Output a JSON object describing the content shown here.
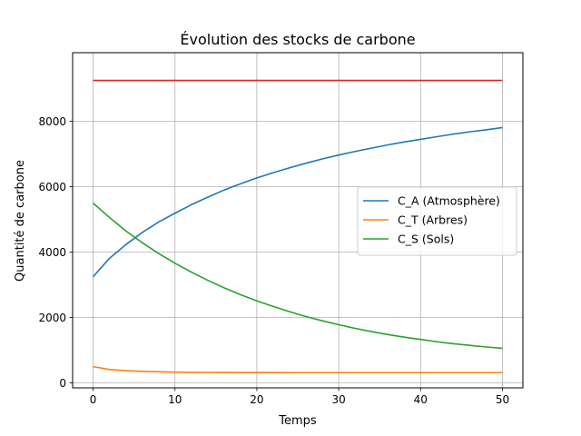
{
  "chart_data": {
    "type": "line",
    "title": "Évolution des stocks de carbone",
    "xlabel": "Temps",
    "ylabel": "Quantité de carbone",
    "xlim": [
      -2.5,
      52.5
    ],
    "ylim": [
      -150,
      10100
    ],
    "xticks": [
      0,
      10,
      20,
      30,
      40,
      50
    ],
    "yticks": [
      0,
      2000,
      4000,
      6000,
      8000
    ],
    "grid": true,
    "legend": "center-right",
    "x": [
      0,
      2,
      4,
      6,
      8,
      10,
      12,
      14,
      16,
      18,
      20,
      22,
      24,
      26,
      28,
      30,
      32,
      34,
      36,
      38,
      40,
      42,
      44,
      46,
      48,
      50
    ],
    "series": [
      {
        "name": "C_A (Atmosphère)",
        "color": "#1f77b4",
        "in_legend": true,
        "values": [
          3250,
          3810,
          4230,
          4600,
          4920,
          5190,
          5450,
          5680,
          5900,
          6090,
          6270,
          6430,
          6580,
          6720,
          6850,
          6970,
          7080,
          7180,
          7280,
          7370,
          7450,
          7530,
          7610,
          7680,
          7740,
          7810
        ]
      },
      {
        "name": "C_T (Arbres)",
        "color": "#ff7f0e",
        "in_legend": true,
        "values": [
          500,
          410,
          375,
          355,
          340,
          330,
          325,
          322,
          320,
          318,
          317,
          316,
          315,
          315,
          315,
          315,
          315,
          315,
          315,
          315,
          315,
          315,
          315,
          315,
          315,
          315
        ]
      },
      {
        "name": "C_S (Sols)",
        "color": "#2ca02c",
        "in_legend": true,
        "values": [
          5500,
          5060,
          4650,
          4290,
          3960,
          3660,
          3390,
          3140,
          2910,
          2700,
          2510,
          2340,
          2180,
          2030,
          1900,
          1780,
          1670,
          1570,
          1480,
          1400,
          1330,
          1260,
          1200,
          1150,
          1100,
          1060
        ]
      },
      {
        "name": "",
        "color": "#d62728",
        "in_legend": false,
        "values": [
          9250,
          9250,
          9250,
          9250,
          9250,
          9250,
          9250,
          9250,
          9250,
          9250,
          9250,
          9250,
          9250,
          9250,
          9250,
          9250,
          9250,
          9250,
          9250,
          9250,
          9250,
          9250,
          9250,
          9250,
          9250,
          9250
        ]
      }
    ]
  }
}
